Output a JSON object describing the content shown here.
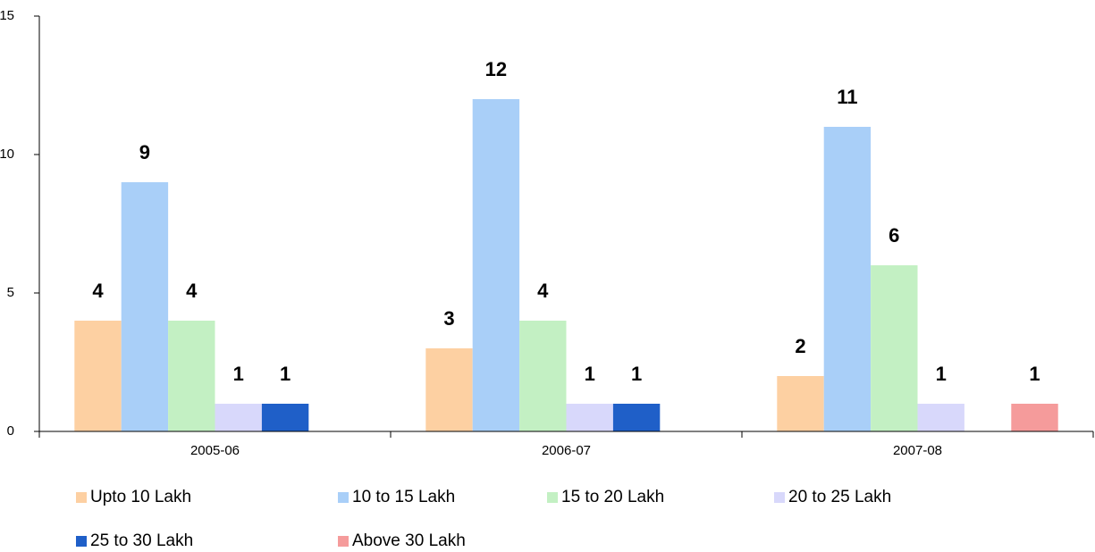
{
  "chart_data": {
    "type": "bar",
    "categories": [
      "2005-06",
      "2006-07",
      "2007-08"
    ],
    "series": [
      {
        "name": "Upto 10 Lakh",
        "color": "#fdd0a2",
        "values": [
          4,
          3,
          2
        ]
      },
      {
        "name": "10 to 15 Lakh",
        "color": "#a9cff8",
        "values": [
          9,
          12,
          11
        ]
      },
      {
        "name": "15 to 20 Lakh",
        "color": "#c3f0c3",
        "values": [
          4,
          4,
          6
        ]
      },
      {
        "name": "20 to 25 Lakh",
        "color": "#d8d8fb",
        "values": [
          1,
          1,
          1
        ]
      },
      {
        "name": "25 to 30 Lakh",
        "color": "#1f5fc8",
        "values": [
          1,
          1,
          null
        ]
      },
      {
        "name": "Above 30 Lakh",
        "color": "#f59b9b",
        "values": [
          null,
          null,
          1
        ]
      }
    ],
    "ylim": [
      0,
      15
    ],
    "yticks": [
      0,
      5,
      10,
      15
    ],
    "legend": "bottom"
  }
}
